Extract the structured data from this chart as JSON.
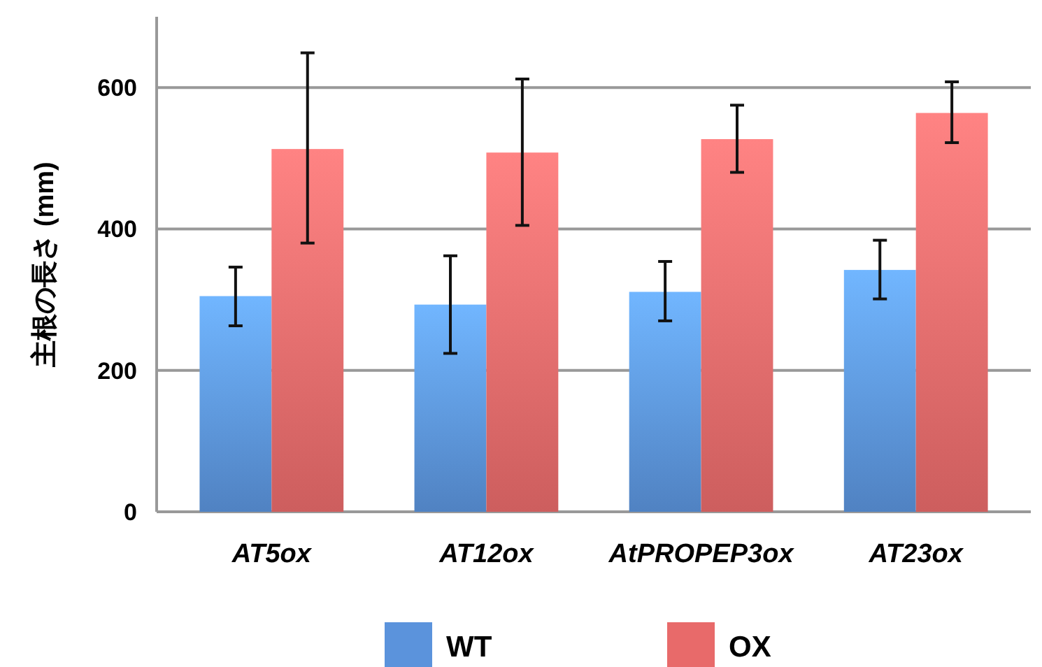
{
  "chart_data": {
    "type": "bar",
    "ylabel": "主根の長さ (mm)",
    "categories": [
      "AT5ox",
      "AT12ox",
      "AtPROPEP3ox",
      "AT23ox"
    ],
    "series": [
      {
        "name": "WT",
        "color": "#5b93dc",
        "values": [
          305,
          293,
          311,
          342
        ],
        "errors": [
          [
            263,
            346
          ],
          [
            224,
            362
          ],
          [
            270,
            354
          ],
          [
            301,
            384
          ]
        ]
      },
      {
        "name": "OX",
        "color": "#e86a6a",
        "values": [
          513,
          508,
          527,
          564
        ],
        "errors": [
          [
            380,
            649
          ],
          [
            405,
            612
          ],
          [
            480,
            575
          ],
          [
            522,
            608
          ]
        ]
      }
    ],
    "ylim": [
      0,
      700
    ],
    "yticks": [
      0,
      200,
      400,
      600
    ],
    "grid": "y",
    "legend": "bottom"
  }
}
